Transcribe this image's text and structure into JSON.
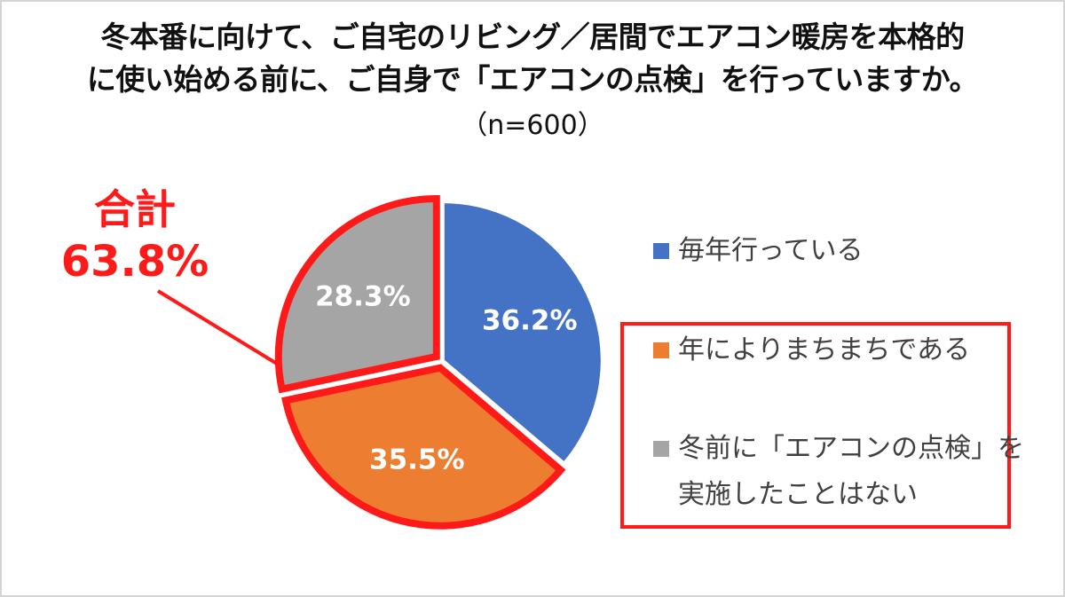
{
  "title_line1": "冬本番に向けて、ご自宅のリビング／居間でエアコン暖房を本格的",
  "title_line2": "に使い始める前に、ご自身で「エアコンの点検」を行っていますか。",
  "subtitle": "（n=600）",
  "callout": {
    "label": "合計",
    "value": "63.8%",
    "color": "#ff1a1a"
  },
  "chart_data": {
    "type": "pie",
    "title": "冬本番に向けて、ご自宅のリビング／居間でエアコン暖房を本格的に使い始める前に、ご自身で「エアコンの点検」を行っていますか。",
    "subtitle": "（n=600）",
    "unit": "%",
    "start_angle_deg": 0,
    "direction": "clockwise",
    "legend_position": "right",
    "slices": [
      {
        "label": "毎年行っている",
        "legend_lines": [
          "毎年行っている"
        ],
        "value": 36.2,
        "display": "36.2%",
        "color": "#4472c4",
        "highlighted": false
      },
      {
        "label": "年によりまちまちである",
        "legend_lines": [
          "年によりまちまちである"
        ],
        "value": 35.5,
        "display": "35.5%",
        "color": "#ed7d31",
        "highlighted": true
      },
      {
        "label": "冬前に「エアコンの点検」を実施したことはない",
        "legend_lines": [
          "冬前に「エアコンの点検」を",
          "実施したことはない"
        ],
        "value": 28.3,
        "display": "28.3%",
        "color": "#a5a5a5",
        "highlighted": true
      }
    ],
    "highlight_total": "63.8%",
    "highlight_color": "#ff1a1a"
  }
}
